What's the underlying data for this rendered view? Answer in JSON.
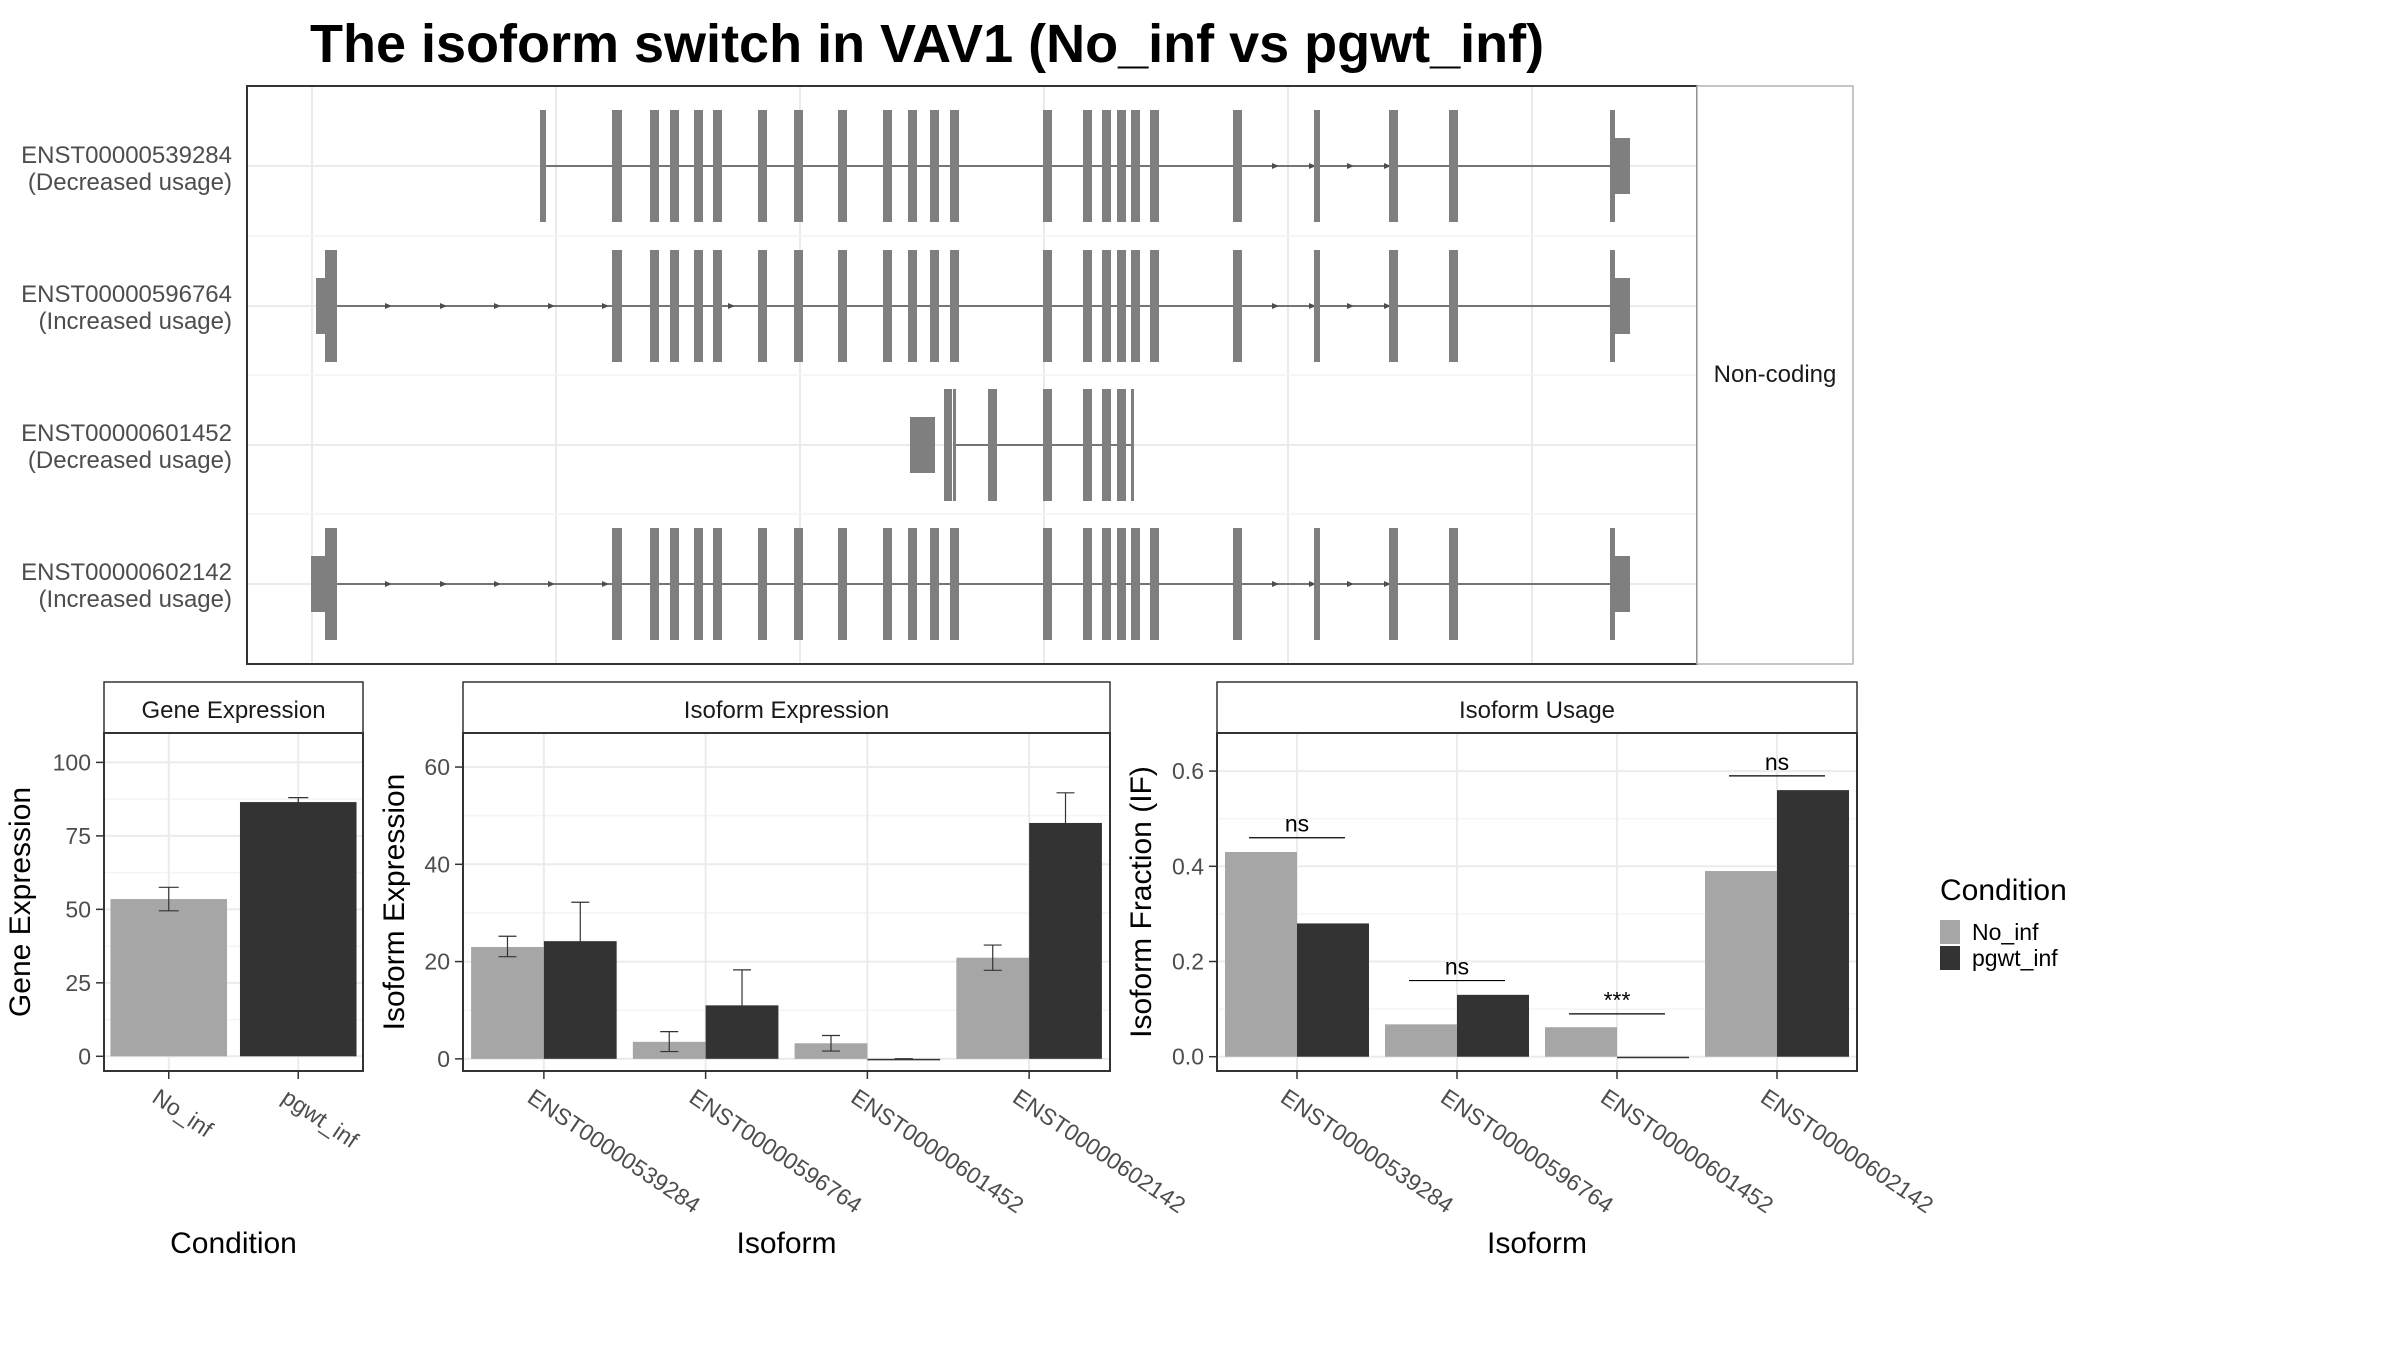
{
  "title": "The isoform switch in VAV1 (No_inf vs pgwt_inf)",
  "colors": {
    "No_inf": "#a6a6a6",
    "pgwt_inf": "#333333",
    "exon": "#7f7f7f"
  },
  "legend": {
    "title": "Condition",
    "items": [
      {
        "label": "No_inf",
        "color": "#a6a6a6"
      },
      {
        "label": "pgwt_inf",
        "color": "#333333"
      }
    ]
  },
  "isoform_structure": {
    "facet_label": "Non-coding",
    "transcripts": [
      {
        "id": "ENST00000539284",
        "usage": "(Decreased usage)"
      },
      {
        "id": "ENST00000596764",
        "usage": "(Increased usage)"
      },
      {
        "id": "ENST00000601452",
        "usage": "(Decreased usage)"
      },
      {
        "id": "ENST00000602142",
        "usage": "(Increased usage)"
      }
    ]
  },
  "chart_data": [
    {
      "type": "bar",
      "title": "Gene Expression",
      "xlabel": "Condition",
      "ylabel": "Gene Expression",
      "categories": [
        "No_inf",
        "pgwt_inf"
      ],
      "values": [
        53.5,
        86.5
      ],
      "errors": [
        [
          49.5,
          57.5
        ],
        [
          85.0,
          88.0
        ]
      ],
      "ylim": [
        -5,
        110
      ],
      "yticks": [
        0,
        25,
        50,
        75,
        100
      ]
    },
    {
      "type": "bar",
      "title": "Isoform Expression",
      "xlabel": "Isoform",
      "ylabel": "Isoform Expression",
      "categories": [
        "ENST00000539284",
        "ENST00000596764",
        "ENST00000601452",
        "ENST00000602142"
      ],
      "series": [
        {
          "name": "No_inf",
          "values": [
            23.0,
            3.5,
            3.2,
            20.8
          ],
          "errors": [
            [
              21.0,
              25.2
            ],
            [
              1.5,
              5.6
            ],
            [
              1.6,
              4.8
            ],
            [
              18.2,
              23.4
            ]
          ]
        },
        {
          "name": "pgwt_inf",
          "values": [
            24.2,
            11.0,
            0,
            48.5
          ],
          "errors": [
            [
              16.2,
              32.2
            ],
            [
              3.7,
              18.3
            ],
            [
              0,
              0
            ],
            [
              42.3,
              54.7
            ]
          ]
        }
      ],
      "ylim": [
        -2.5,
        67
      ],
      "yticks": [
        0,
        20,
        40,
        60
      ]
    },
    {
      "type": "bar",
      "title": "Isoform Usage",
      "xlabel": "Isoform",
      "ylabel": "Isoform Fraction (IF)",
      "categories": [
        "ENST00000539284",
        "ENST00000596764",
        "ENST00000601452",
        "ENST00000602142"
      ],
      "series": [
        {
          "name": "No_inf",
          "values": [
            0.43,
            0.068,
            0.062,
            0.39
          ]
        },
        {
          "name": "pgwt_inf",
          "values": [
            0.28,
            0.13,
            0.0,
            0.56
          ]
        }
      ],
      "significance": [
        {
          "label": "ns",
          "y": 0.46
        },
        {
          "label": "ns",
          "y": 0.16
        },
        {
          "label": "***",
          "y": 0.09
        },
        {
          "label": "ns",
          "y": 0.59
        }
      ],
      "ylim": [
        -0.03,
        0.68
      ],
      "yticks": [
        0.0,
        0.2,
        0.4,
        0.6
      ]
    }
  ]
}
